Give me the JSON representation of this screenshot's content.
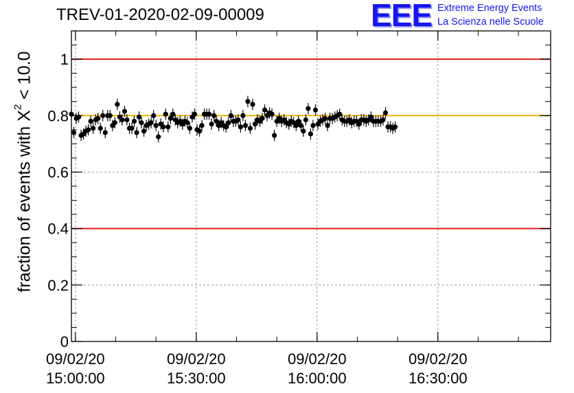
{
  "header": {
    "run_title": "TREV-01-2020-02-09-00009",
    "logo_mark": "EEE",
    "logo_line1": "Extreme Energy Events",
    "logo_line2": "La Scienza nelle Scuole"
  },
  "colors": {
    "threshold_line": "#e31a1a",
    "mean_line": "#f0b400",
    "points": "#000000",
    "grid": "#9a9a9a",
    "logo": "#1515f0"
  },
  "chart_data": {
    "type": "scatter",
    "title": "",
    "ylabel": {
      "prefix": "fraction of events with ",
      "symbol": "X",
      "superscript": "2",
      "suffix": " < 10.0"
    },
    "xlim": [
      "2020-02-09 14:59:00",
      "2020-02-09 16:58:00"
    ],
    "ylim": [
      0,
      1.1
    ],
    "yticks": [
      {
        "value": 0,
        "label": "0"
      },
      {
        "value": 0.2,
        "label": "0.2"
      },
      {
        "value": 0.4,
        "label": "0.4"
      },
      {
        "value": 0.6,
        "label": "0.6"
      },
      {
        "value": 0.8,
        "label": "0.8"
      },
      {
        "value": 1,
        "label": "1"
      }
    ],
    "xticks": [
      {
        "time": "2020-02-09 15:00:00",
        "date": "09/02/20",
        "clock": "15:00:00"
      },
      {
        "time": "2020-02-09 15:30:00",
        "date": "09/02/20",
        "clock": "15:30:00"
      },
      {
        "time": "2020-02-09 16:00:00",
        "date": "09/02/20",
        "clock": "16:00:00"
      },
      {
        "time": "2020-02-09 16:30:00",
        "date": "09/02/20",
        "clock": "16:30:00"
      }
    ],
    "hlines": [
      {
        "y": 1.0,
        "color": "#e31a1a"
      },
      {
        "y": 0.4,
        "color": "#e31a1a"
      },
      {
        "y": 0.8,
        "color": "#f0b400"
      }
    ],
    "grid": true,
    "x_start": "2020-02-09 14:59:00",
    "x_step_seconds": 36,
    "y_error": 0.02,
    "values": [
      0.805,
      0.74,
      0.79,
      0.795,
      0.73,
      0.735,
      0.745,
      0.75,
      0.78,
      0.755,
      0.785,
      0.79,
      0.755,
      0.8,
      0.74,
      0.8,
      0.8,
      0.765,
      0.775,
      0.84,
      0.795,
      0.785,
      0.815,
      0.785,
      0.755,
      0.755,
      0.78,
      0.74,
      0.795,
      0.775,
      0.745,
      0.765,
      0.77,
      0.775,
      0.8,
      0.765,
      0.725,
      0.77,
      0.76,
      0.805,
      0.76,
      0.79,
      0.805,
      0.785,
      0.775,
      0.78,
      0.77,
      0.78,
      0.775,
      0.755,
      0.795,
      0.805,
      0.75,
      0.745,
      0.765,
      0.805,
      0.805,
      0.805,
      0.77,
      0.8,
      0.78,
      0.765,
      0.775,
      0.765,
      0.76,
      0.775,
      0.8,
      0.78,
      0.78,
      0.785,
      0.76,
      0.8,
      0.765,
      0.85,
      0.755,
      0.84,
      0.77,
      0.785,
      0.78,
      0.79,
      0.82,
      0.8,
      0.81,
      0.805,
      0.73,
      0.78,
      0.79,
      0.78,
      0.785,
      0.775,
      0.77,
      0.78,
      0.775,
      0.765,
      0.78,
      0.765,
      0.745,
      0.785,
      0.825,
      0.735,
      0.765,
      0.82,
      0.77,
      0.78,
      0.785,
      0.79,
      0.765,
      0.79,
      0.79,
      0.795,
      0.8,
      0.805,
      0.785,
      0.78,
      0.78,
      0.785,
      0.775,
      0.78,
      0.78,
      0.77,
      0.785,
      0.785,
      0.78,
      0.785,
      0.795,
      0.78,
      0.78,
      0.78,
      0.78,
      0.785,
      0.81,
      0.76,
      0.76,
      0.755,
      0.76
    ]
  }
}
